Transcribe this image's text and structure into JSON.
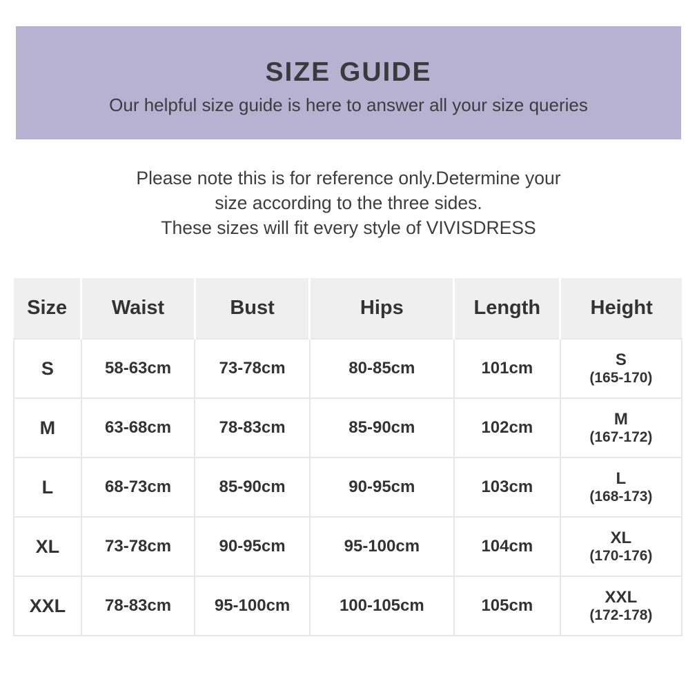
{
  "banner": {
    "title": "SIZE GUIDE",
    "subtitle": "Our helpful size guide is here to answer all your size queries",
    "background_color": "#b8b2d2"
  },
  "note": {
    "lines": [
      "Please note this is for reference only.Determine your",
      "size according to the three sides.",
      "These sizes will fit every style of VIVISDRESS"
    ],
    "brand": "VIVISDRESS"
  },
  "table": {
    "columns": [
      "Size",
      "Waist",
      "Bust",
      "Hips",
      "Length",
      "Height"
    ],
    "rows": [
      {
        "size": "S",
        "waist": "58-63cm",
        "bust": "73-78cm",
        "hips": "80-85cm",
        "length": "101cm",
        "height_label": "S",
        "height_range": "(165-170)"
      },
      {
        "size": "M",
        "waist": "63-68cm",
        "bust": "78-83cm",
        "hips": "85-90cm",
        "length": "102cm",
        "height_label": "M",
        "height_range": "(167-172)"
      },
      {
        "size": "L",
        "waist": "68-73cm",
        "bust": "85-90cm",
        "hips": "90-95cm",
        "length": "103cm",
        "height_label": "L",
        "height_range": "(168-173)"
      },
      {
        "size": "XL",
        "waist": "73-78cm",
        "bust": "90-95cm",
        "hips": "95-100cm",
        "length": "104cm",
        "height_label": "XL",
        "height_range": "(170-176)"
      },
      {
        "size": "XXL",
        "waist": "78-83cm",
        "bust": "95-100cm",
        "hips": "100-105cm",
        "length": "105cm",
        "height_label": "XXL",
        "height_range": "(172-178)"
      }
    ]
  },
  "colors": {
    "banner_bg": "#b8b2d2",
    "heading_text": "#3a3a3c",
    "body_text": "#3d3d3f",
    "table_text": "#333333",
    "table_header_bg": "#efefef",
    "table_border": "#e7e7e7"
  }
}
